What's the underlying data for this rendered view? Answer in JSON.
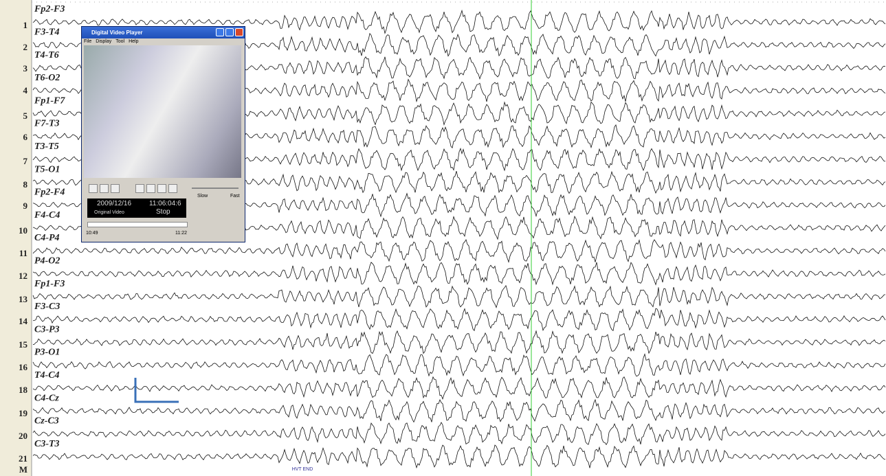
{
  "channels": {
    "numbers": [
      "1",
      "2",
      "3",
      "4",
      "5",
      "6",
      "7",
      "8",
      "9",
      "10",
      "11",
      "12",
      "13",
      "14",
      "15",
      "16",
      "18",
      "19",
      "20",
      "21",
      "M"
    ],
    "labels": [
      "Fp2-F3",
      "F3-T4",
      "T4-T6",
      "T6-O2",
      "Fp1-F7",
      "F7-T3",
      "T3-T5",
      "T5-O1",
      "Fp2-F4",
      "F4-C4",
      "C4-P4",
      "P4-O2",
      "Fp1-F3",
      "F3-C3",
      "C3-P3",
      "P3-O1",
      "T4-C4",
      "C4-Cz",
      "Cz-C3",
      "C3-T3"
    ]
  },
  "player": {
    "title": "Digital Video Player",
    "menu": [
      "File",
      "Display",
      "Tool",
      "Help"
    ],
    "date": "2009/12/16",
    "time": "11:06:04:6",
    "source": "Original Video",
    "status": "Stop",
    "slow": "Slow",
    "fast": "Fast",
    "start_time": "10:49",
    "end_time": "11:22"
  },
  "annotation": "HVT END"
}
